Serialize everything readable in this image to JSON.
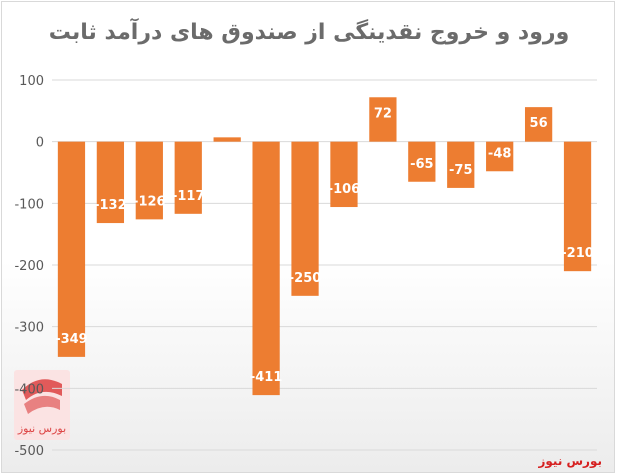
{
  "chart_data": {
    "type": "bar",
    "title": "ورود و خروج  نقدینگی از صندوق های درآمد ثابت",
    "categories": [
      "",
      "",
      "",
      "",
      "",
      "",
      "",
      "",
      "",
      "",
      "",
      "",
      "",
      ""
    ],
    "values": [
      -349,
      -132,
      -126,
      -117,
      7,
      -411,
      -250,
      -106,
      72,
      -65,
      -75,
      -48,
      56,
      -210
    ],
    "ylim": [
      -500,
      100
    ],
    "yticks": [
      100,
      0,
      -100,
      -200,
      -300,
      -400,
      -500
    ],
    "grid": true,
    "bar_color": "#ED7D31"
  },
  "watermark": {
    "text": "بورس نیوز",
    "logo_text": "بورس نیوز",
    "color": "#d62020"
  }
}
